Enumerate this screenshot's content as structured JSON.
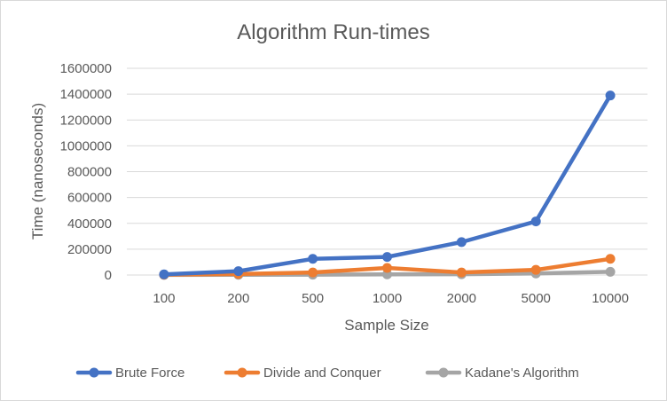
{
  "chart_data": {
    "type": "line",
    "title": "Algorithm Run-times",
    "xlabel": "Sample Size",
    "ylabel": "Time (nanoseconds)",
    "categories": [
      "100",
      "200",
      "500",
      "1000",
      "2000",
      "5000",
      "10000"
    ],
    "ylim": [
      0,
      1600000
    ],
    "yticks": [
      0,
      200000,
      400000,
      600000,
      800000,
      1000000,
      1200000,
      1400000,
      1600000
    ],
    "grid": true,
    "legend_position": "bottom",
    "series": [
      {
        "name": "Brute Force",
        "color": "#4472C4",
        "values": [
          5000,
          30000,
          125000,
          140000,
          255000,
          415000,
          1390000
        ]
      },
      {
        "name": "Divide and Conquer",
        "color": "#ED7D31",
        "values": [
          3000,
          8000,
          20000,
          55000,
          20000,
          40000,
          125000
        ]
      },
      {
        "name": "Kadane's Algorithm",
        "color": "#A5A5A5",
        "values": [
          1000,
          2000,
          3000,
          5000,
          6000,
          12000,
          25000
        ]
      }
    ]
  }
}
